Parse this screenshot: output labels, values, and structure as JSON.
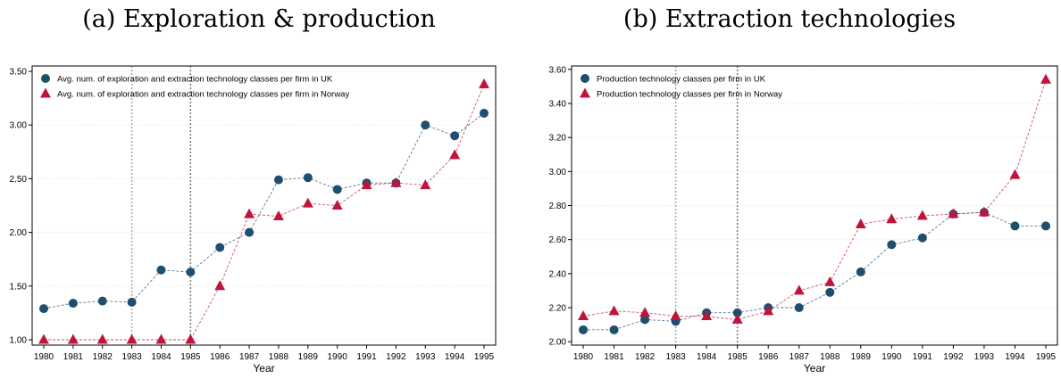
{
  "chart_data": [
    {
      "type": "line",
      "title": "(a) Exploration & production",
      "xlabel": "Year",
      "ylabel": "",
      "x": [
        1980,
        1981,
        1982,
        1983,
        1984,
        1985,
        1986,
        1987,
        1988,
        1989,
        1990,
        1991,
        1992,
        1993,
        1994,
        1995
      ],
      "x_ticks": [
        "1980",
        "1981",
        "1982",
        "1983",
        "1984",
        "1985",
        "1986",
        "1987",
        "1988",
        "1989",
        "1990",
        "1991",
        "1992",
        "1993",
        "1994",
        "1995"
      ],
      "y_ticks": [
        "1.00",
        "1.50",
        "2.00",
        "2.50",
        "3.00",
        "3.50"
      ],
      "ylim": [
        0.95,
        3.55
      ],
      "grid": true,
      "legend_position": "top-left",
      "vlines": [
        1983,
        1985
      ],
      "series": [
        {
          "name": "Avg. num. of exploration and extraction technology classes per firm in UK",
          "marker": "circle",
          "color": "#1f4e6e",
          "values": [
            1.29,
            1.34,
            1.36,
            1.35,
            1.65,
            1.63,
            1.86,
            2.0,
            2.49,
            2.51,
            2.4,
            2.46,
            2.46,
            3.0,
            2.9,
            3.11
          ]
        },
        {
          "name": "Avg. num. of exploration and extraction technology classes per firm in Norway",
          "marker": "triangle",
          "color": "#c0143c",
          "values": [
            1.0,
            1.0,
            1.0,
            1.0,
            1.0,
            1.0,
            1.5,
            2.17,
            2.15,
            2.27,
            2.25,
            2.44,
            2.46,
            2.44,
            2.72,
            3.38
          ]
        }
      ]
    },
    {
      "type": "line",
      "title": "(b) Extraction technologies",
      "xlabel": "Year",
      "ylabel": "",
      "x": [
        1980,
        1981,
        1982,
        1983,
        1984,
        1985,
        1986,
        1987,
        1988,
        1989,
        1990,
        1991,
        1992,
        1993,
        1994,
        1995
      ],
      "x_ticks": [
        "1980",
        "1981",
        "1982",
        "1983",
        "1984",
        "1985",
        "1986",
        "1987",
        "1988",
        "1989",
        "1990",
        "1991",
        "1992",
        "1993",
        "1994",
        "1995"
      ],
      "y_ticks": [
        "2.00",
        "2.20",
        "2.40",
        "2.60",
        "2.80",
        "3.00",
        "3.20",
        "3.40",
        "3.60"
      ],
      "ylim": [
        1.98,
        3.62
      ],
      "grid": true,
      "legend_position": "top-left",
      "vlines": [
        1983,
        1985
      ],
      "series": [
        {
          "name": "Production technology classes per firm in UK",
          "marker": "circle",
          "color": "#1f4e6e",
          "values": [
            2.07,
            2.07,
            2.13,
            2.12,
            2.17,
            2.17,
            2.2,
            2.2,
            2.29,
            2.41,
            2.57,
            2.61,
            2.75,
            2.76,
            2.68,
            2.68
          ]
        },
        {
          "name": "Production technology classes per firm in Norway",
          "marker": "triangle",
          "color": "#c0143c",
          "values": [
            2.15,
            2.18,
            2.17,
            2.15,
            2.15,
            2.13,
            2.18,
            2.3,
            2.35,
            2.69,
            2.72,
            2.74,
            2.75,
            2.76,
            2.98,
            3.54
          ]
        }
      ]
    }
  ]
}
